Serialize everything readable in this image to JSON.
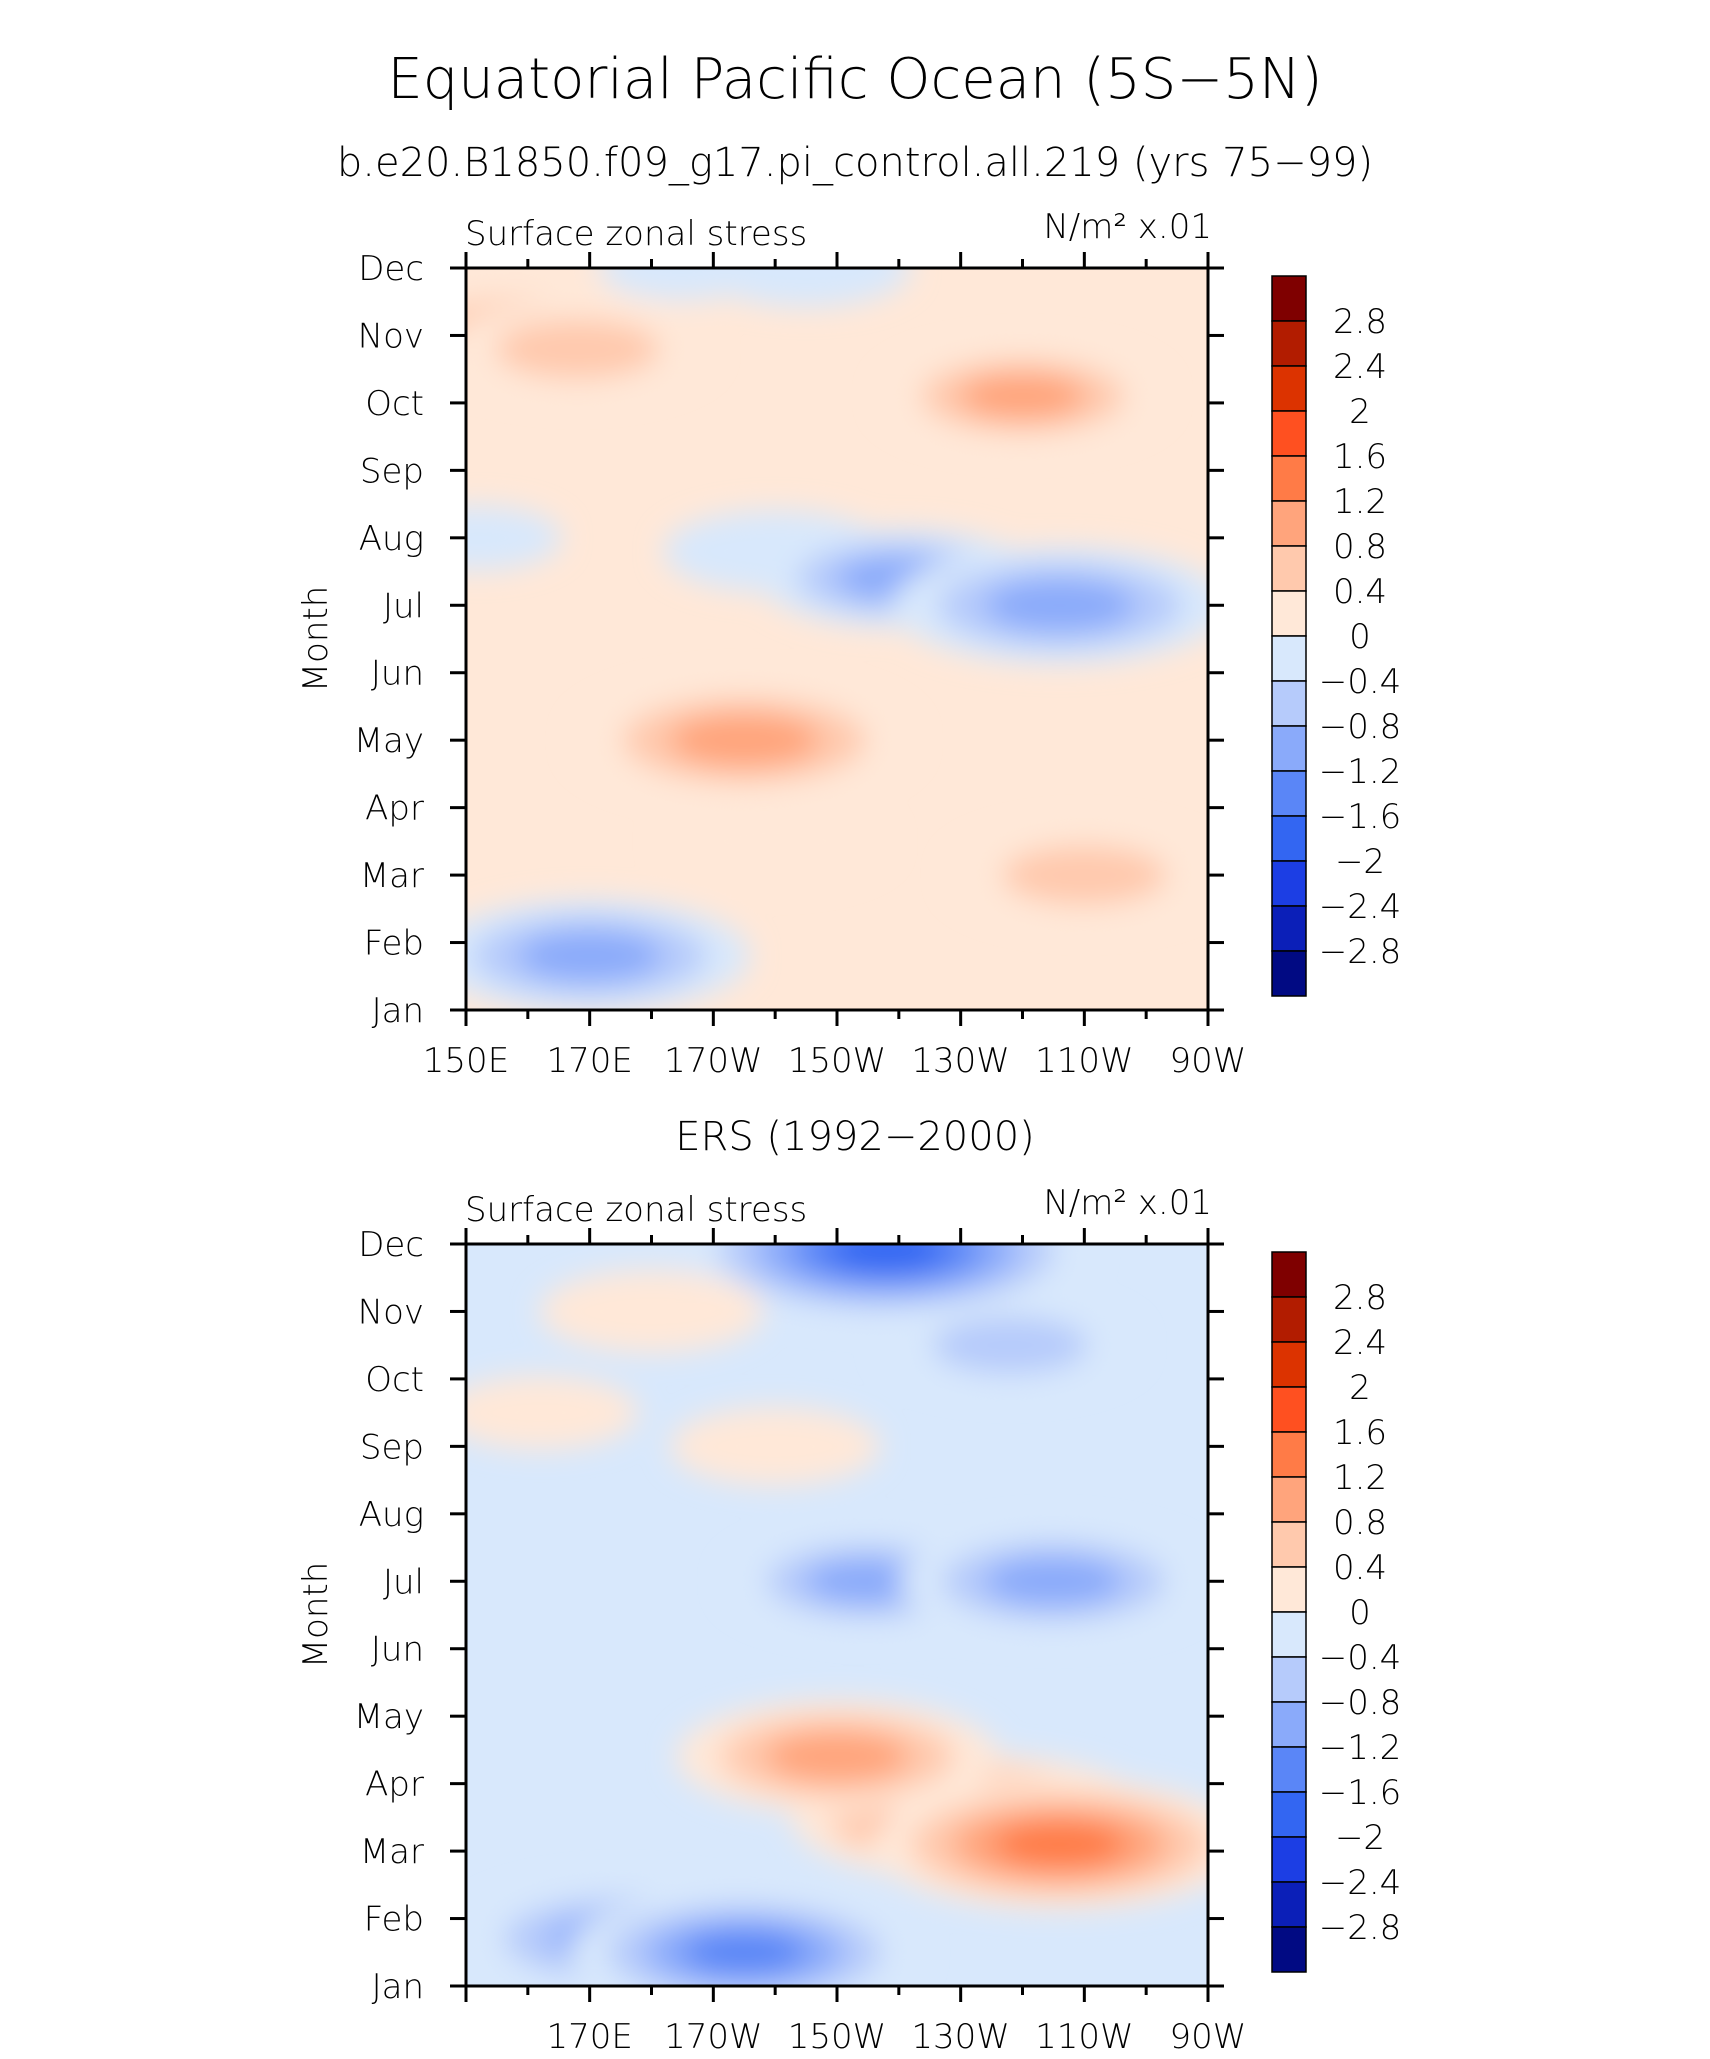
{
  "figure": {
    "title": "Equatorial Pacific Ocean (5S−5N)",
    "subtitle": "b.e20.B1850.f09_g17.pi_control.all.219 (yrs 75−99)"
  },
  "colorbar": {
    "labels": [
      "2.8",
      "2.4",
      "2",
      "1.6",
      "1.2",
      "0.8",
      "0.4",
      "0",
      "−0.4",
      "−0.8",
      "−1.2",
      "−1.6",
      "−2",
      "−2.4",
      "−2.8"
    ],
    "colors": [
      "#7f0000",
      "#b21c00",
      "#dc3300",
      "#ff5020",
      "#ff7b47",
      "#ffa47c",
      "#ffc9ad",
      "#ffe8d8",
      "#d8e8fc",
      "#b6cbfb",
      "#8aaafa",
      "#5a86f7",
      "#3366f2",
      "#1c3ee4",
      "#0b1fb8",
      "#010a83"
    ]
  },
  "chart_data": [
    {
      "type": "heatmap",
      "panel_title": "",
      "left_label": "Surface zonal stress",
      "right_label": "N/m² x.01",
      "ylabel": "Month",
      "yticks": [
        "Jan",
        "Feb",
        "Mar",
        "Apr",
        "May",
        "Jun",
        "Jul",
        "Aug",
        "Sep",
        "Oct",
        "Nov",
        "Dec"
      ],
      "xticks": [
        "150E",
        "170E",
        "170W",
        "150W",
        "130W",
        "110W",
        "90W"
      ],
      "xlim": [
        150,
        270
      ],
      "ylim": [
        1,
        12
      ],
      "features": [
        {
          "lon": 158,
          "month": 11.0,
          "value": 1.0
        },
        {
          "lon": 168,
          "month": 10.8,
          "value": 0.9
        },
        {
          "lon": 185,
          "month": 12.0,
          "value": -0.2
        },
        {
          "lon": 205,
          "month": 12.0,
          "value": -0.5
        },
        {
          "lon": 240,
          "month": 10.1,
          "value": 1.0
        },
        {
          "lon": 152,
          "month": 8.0,
          "value": -0.2
        },
        {
          "lon": 200,
          "month": 7.8,
          "value": -0.6
        },
        {
          "lon": 220,
          "month": 7.4,
          "value": -1.0
        },
        {
          "lon": 246,
          "month": 7.0,
          "value": -1.4
        },
        {
          "lon": 195,
          "month": 5.0,
          "value": 1.4
        },
        {
          "lon": 250,
          "month": 3.0,
          "value": 0.9
        },
        {
          "lon": 170,
          "month": 1.8,
          "value": -1.3
        },
        {
          "lon": 200,
          "month": 3.5,
          "value": 0.6
        }
      ]
    },
    {
      "type": "heatmap",
      "panel_title": "ERS (1992−2000)",
      "left_label": "Surface zonal stress",
      "right_label": "N/m² x.01",
      "ylabel": "Month",
      "yticks": [
        "Jan",
        "Feb",
        "Mar",
        "Apr",
        "May",
        "Jun",
        "Jul",
        "Aug",
        "Sep",
        "Oct",
        "Nov",
        "Dec"
      ],
      "xticks": [
        "170E",
        "170W",
        "150W",
        "130W",
        "110W",
        "90W"
      ],
      "xlim": [
        150,
        270
      ],
      "ylim": [
        1,
        12
      ],
      "features": [
        {
          "lon": 218,
          "month": 11.9,
          "value": -1.9
        },
        {
          "lon": 238,
          "month": 10.5,
          "value": -0.8
        },
        {
          "lon": 180,
          "month": 11.0,
          "value": 0.6
        },
        {
          "lon": 162,
          "month": 9.5,
          "value": 0.4
        },
        {
          "lon": 200,
          "month": 9.0,
          "value": 0.5
        },
        {
          "lon": 215,
          "month": 7.0,
          "value": -1.0
        },
        {
          "lon": 245,
          "month": 7.0,
          "value": -1.2
        },
        {
          "lon": 232,
          "month": 3.5,
          "value": 1.6
        },
        {
          "lon": 210,
          "month": 4.4,
          "value": 1.3
        },
        {
          "lon": 246,
          "month": 3.1,
          "value": 1.7
        },
        {
          "lon": 175,
          "month": 1.7,
          "value": -1.3
        },
        {
          "lon": 195,
          "month": 1.5,
          "value": -1.5
        }
      ]
    }
  ]
}
